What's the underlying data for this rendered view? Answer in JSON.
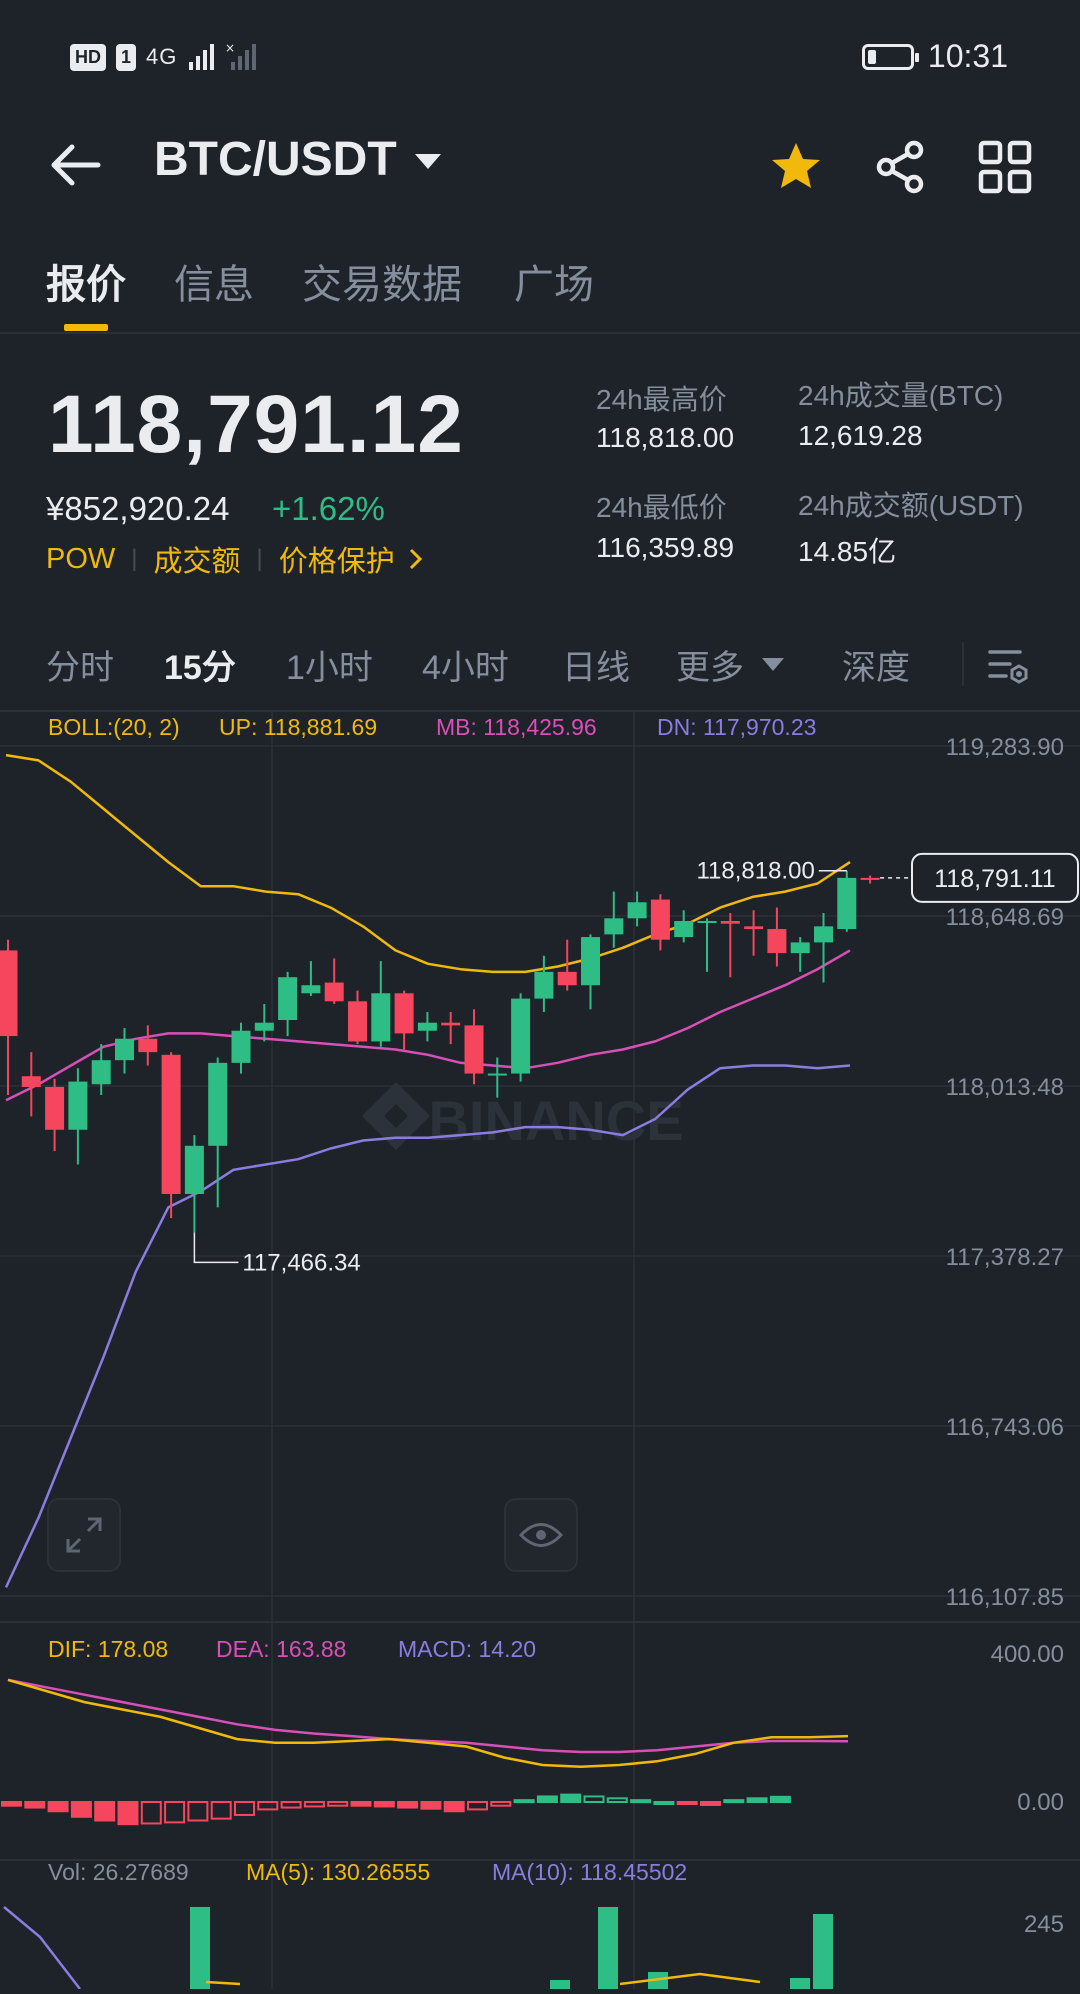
{
  "status_bar": {
    "hd": "HD",
    "sim": "1",
    "net": "4G",
    "time": "10:31"
  },
  "header": {
    "pair": "BTC/USDT",
    "icons": [
      "back-arrow-icon",
      "caret-down-icon",
      "star-icon",
      "share-icon",
      "grid-icon"
    ]
  },
  "tabs": [
    {
      "label": "报价",
      "active": true
    },
    {
      "label": "信息"
    },
    {
      "label": "交易数据"
    },
    {
      "label": "广场"
    }
  ],
  "price": {
    "last": "118,791.12",
    "cny": "¥852,920.24",
    "change": "+1.62%",
    "tags": [
      "POW",
      "成交额",
      "价格保护"
    ]
  },
  "stats": {
    "high_label": "24h最高价",
    "high": "118,818.00",
    "low_label": "24h最低价",
    "low": "116,359.89",
    "vol_btc_label": "24h成交量(BTC)",
    "vol_btc": "12,619.28",
    "vol_usdt_label": "24h成交额(USDT)",
    "vol_usdt": "14.85亿"
  },
  "intervals": [
    {
      "label": "分时"
    },
    {
      "label": "15分",
      "active": true
    },
    {
      "label": "1小时"
    },
    {
      "label": "4小时"
    },
    {
      "label": "日线"
    },
    {
      "label": "更多"
    },
    {
      "label": "深度"
    }
  ],
  "colors": {
    "up": "#2ebd85",
    "down": "#f6465d",
    "accent": "#f0b90b",
    "mb": "#d94fb8",
    "dn": "#8b7ce0"
  },
  "chart_data": {
    "type": "candlestick",
    "watermark": "BINANCE",
    "boll": {
      "label": "BOLL:(20, 2)",
      "up": "UP: 118,881.69",
      "mb": "MB: 118,425.96",
      "dn": "DN: 117,970.23"
    },
    "y_ticks": [
      "119,283.90",
      "118,648.69",
      "118,013.48",
      "117,378.27",
      "116,743.06",
      "116,107.85"
    ],
    "y_values": [
      119283.9,
      118648.69,
      118013.48,
      117378.27,
      116743.06,
      116107.85
    ],
    "high_marker": "118,818.00",
    "low_marker": "117,466.34",
    "current_price": "118,791.11",
    "candles": [
      {
        "o": 118520,
        "h": 118560,
        "l": 117980,
        "c": 118200
      },
      {
        "o": 118050,
        "h": 118140,
        "l": 117900,
        "c": 118010
      },
      {
        "o": 118010,
        "h": 118040,
        "l": 117770,
        "c": 117850
      },
      {
        "o": 117850,
        "h": 118080,
        "l": 117720,
        "c": 118030
      },
      {
        "o": 118020,
        "h": 118170,
        "l": 117980,
        "c": 118110
      },
      {
        "o": 118110,
        "h": 118230,
        "l": 118060,
        "c": 118190
      },
      {
        "o": 118190,
        "h": 118240,
        "l": 118090,
        "c": 118140
      },
      {
        "o": 118130,
        "h": 118140,
        "l": 117520,
        "c": 117610
      },
      {
        "o": 117610,
        "h": 117830,
        "l": 117466.34,
        "c": 117790
      },
      {
        "o": 117790,
        "h": 118120,
        "l": 117560,
        "c": 118100
      },
      {
        "o": 118100,
        "h": 118250,
        "l": 118060,
        "c": 118220
      },
      {
        "o": 118220,
        "h": 118320,
        "l": 118180,
        "c": 118250
      },
      {
        "o": 118260,
        "h": 118440,
        "l": 118200,
        "c": 118420
      },
      {
        "o": 118360,
        "h": 118480,
        "l": 118350,
        "c": 118390
      },
      {
        "o": 118400,
        "h": 118490,
        "l": 118320,
        "c": 118330
      },
      {
        "o": 118330,
        "h": 118370,
        "l": 118170,
        "c": 118180
      },
      {
        "o": 118180,
        "h": 118480,
        "l": 118160,
        "c": 118360
      },
      {
        "o": 118360,
        "h": 118370,
        "l": 118150,
        "c": 118210
      },
      {
        "o": 118220,
        "h": 118290,
        "l": 118180,
        "c": 118250
      },
      {
        "o": 118250,
        "h": 118290,
        "l": 118170,
        "c": 118240
      },
      {
        "o": 118240,
        "h": 118300,
        "l": 118020,
        "c": 118060
      },
      {
        "o": 118060,
        "h": 118120,
        "l": 117970,
        "c": 118060
      },
      {
        "o": 118060,
        "h": 118360,
        "l": 118030,
        "c": 118340
      },
      {
        "o": 118340,
        "h": 118500,
        "l": 118290,
        "c": 118440
      },
      {
        "o": 118440,
        "h": 118560,
        "l": 118370,
        "c": 118390
      },
      {
        "o": 118390,
        "h": 118580,
        "l": 118300,
        "c": 118570
      },
      {
        "o": 118580,
        "h": 118740,
        "l": 118530,
        "c": 118640
      },
      {
        "o": 118640,
        "h": 118740,
        "l": 118610,
        "c": 118700
      },
      {
        "o": 118710,
        "h": 118730,
        "l": 118520,
        "c": 118560
      },
      {
        "o": 118570,
        "h": 118670,
        "l": 118550,
        "c": 118630
      },
      {
        "o": 118630,
        "h": 118640,
        "l": 118440,
        "c": 118630
      },
      {
        "o": 118630,
        "h": 118660,
        "l": 118420,
        "c": 118620
      },
      {
        "o": 118610,
        "h": 118670,
        "l": 118500,
        "c": 118600
      },
      {
        "o": 118600,
        "h": 118680,
        "l": 118460,
        "c": 118510
      },
      {
        "o": 118510,
        "h": 118570,
        "l": 118440,
        "c": 118550
      },
      {
        "o": 118550,
        "h": 118660,
        "l": 118400,
        "c": 118610
      },
      {
        "o": 118600,
        "h": 118818,
        "l": 118590,
        "c": 118791.11
      },
      {
        "o": 118791.11,
        "h": 118800,
        "l": 118770,
        "c": 118785
      }
    ],
    "boll_up": [
      119250,
      119230,
      119150,
      119050,
      118950,
      118850,
      118760,
      118760,
      118740,
      118730,
      118680,
      118610,
      118520,
      118470,
      118450,
      118440,
      118440,
      118460,
      118490,
      118530,
      118580,
      118620,
      118680,
      118720,
      118740,
      118770,
      118850
    ],
    "boll_mb": [
      117960,
      118020,
      118090,
      118160,
      118190,
      118210,
      118210,
      118200,
      118190,
      118180,
      118170,
      118160,
      118150,
      118130,
      118100,
      118090,
      118080,
      118100,
      118130,
      118150,
      118180,
      118230,
      118290,
      118340,
      118390,
      118450,
      118520
    ],
    "boll_dn": [
      116140,
      116400,
      116700,
      117000,
      117320,
      117560,
      117620,
      117700,
      117720,
      117740,
      117780,
      117810,
      117820,
      117820,
      117830,
      117840,
      117860,
      117860,
      117850,
      117830,
      117890,
      118000,
      118080,
      118090,
      118090,
      118080,
      118090
    ],
    "macd": {
      "dif_label": "DIF: 178.08",
      "dea_label": "DEA: 163.88",
      "macd_label": "MACD: 14.20",
      "y_ticks": [
        "400.00",
        "0.00"
      ],
      "y_range": [
        -40,
        420
      ],
      "dif": [
        330,
        300,
        270,
        250,
        230,
        200,
        170,
        160,
        160,
        165,
        170,
        160,
        150,
        120,
        100,
        95,
        100,
        110,
        130,
        160,
        175,
        175,
        178
      ],
      "dea": [
        330,
        310,
        290,
        270,
        250,
        230,
        210,
        195,
        185,
        178,
        170,
        165,
        160,
        150,
        140,
        135,
        135,
        140,
        150,
        160,
        165,
        165,
        164
      ],
      "hist": [
        -10,
        -15,
        -25,
        -40,
        -50,
        -60,
        -58,
        -55,
        -50,
        -45,
        -35,
        -20,
        -15,
        -12,
        -10,
        -10,
        -12,
        -15,
        -18,
        -25,
        -20,
        -10,
        5,
        15,
        20,
        15,
        10,
        5,
        0,
        -5,
        -8,
        5,
        10,
        14
      ]
    },
    "volume": {
      "vol_label": "Vol: 26.27689",
      "ma5_label": "MA(5): 130.26555",
      "ma10_label": "MA(10): 118.45502",
      "y_ticks": [
        "245"
      ]
    }
  }
}
